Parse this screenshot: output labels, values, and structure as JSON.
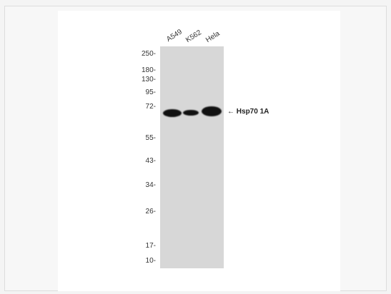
{
  "lanes": [
    "A549",
    "K562",
    "Hela"
  ],
  "markers": [
    "250-",
    "180-",
    "130-",
    "95-",
    "72-",
    "55-",
    "43-",
    "34-",
    "26-",
    "17-",
    "10-"
  ],
  "annotation": {
    "arrow": "←",
    "protein": "Hsp70 1A"
  }
}
